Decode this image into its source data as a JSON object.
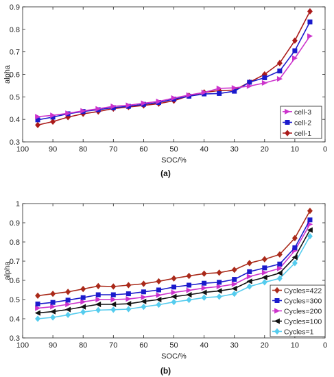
{
  "chart_data": [
    {
      "type": "line",
      "caption": "(a)",
      "xlabel": "SOC/%",
      "ylabel": "alpha",
      "xlim": [
        100,
        0
      ],
      "ylim": [
        0.3,
        0.9
      ],
      "x_reversed": true,
      "xticks": [
        100,
        90,
        80,
        70,
        60,
        50,
        40,
        30,
        20,
        10,
        0
      ],
      "yticks": [
        0.3,
        0.4,
        0.5,
        0.6,
        0.7,
        0.8,
        0.9
      ],
      "grid": false,
      "legend_position": "bottom-right",
      "x": [
        95,
        90,
        85,
        80,
        75,
        70,
        65,
        60,
        55,
        50,
        45,
        40,
        35,
        30,
        25,
        20,
        15,
        10,
        5
      ],
      "series": [
        {
          "name": "cell-3",
          "color": "#cc33cc",
          "marker": "triangle-right",
          "values": [
            0.412,
            0.418,
            0.427,
            0.438,
            0.447,
            0.458,
            0.463,
            0.472,
            0.48,
            0.495,
            0.508,
            0.52,
            0.538,
            0.54,
            0.548,
            0.562,
            0.58,
            0.672,
            0.77
          ]
        },
        {
          "name": "cell-2",
          "color": "#1a1acc",
          "marker": "square",
          "values": [
            0.398,
            0.41,
            0.425,
            0.435,
            0.443,
            0.452,
            0.458,
            0.467,
            0.475,
            0.49,
            0.503,
            0.513,
            0.515,
            0.525,
            0.565,
            0.585,
            0.615,
            0.705,
            0.833
          ]
        },
        {
          "name": "cell-1",
          "color": "#aa1a1a",
          "marker": "diamond",
          "values": [
            0.375,
            0.39,
            0.41,
            0.425,
            0.435,
            0.448,
            0.455,
            0.462,
            0.47,
            0.483,
            0.505,
            0.52,
            0.528,
            0.53,
            0.565,
            0.6,
            0.65,
            0.75,
            0.88
          ]
        }
      ]
    },
    {
      "type": "line",
      "caption": "(b)",
      "xlabel": "SOC/%",
      "ylabel": "alpha",
      "xlim": [
        100,
        0
      ],
      "ylim": [
        0.3,
        1.0
      ],
      "x_reversed": true,
      "xticks": [
        100,
        90,
        80,
        70,
        60,
        50,
        40,
        30,
        20,
        10,
        0
      ],
      "yticks": [
        0.3,
        0.4,
        0.5,
        0.6,
        0.7,
        0.8,
        0.9,
        1
      ],
      "grid": false,
      "legend_position": "bottom-right",
      "x": [
        95,
        90,
        85,
        80,
        75,
        70,
        65,
        60,
        55,
        50,
        45,
        40,
        35,
        30,
        25,
        20,
        15,
        10,
        5
      ],
      "series": [
        {
          "name": "Cycles=422",
          "color": "#aa2a1a",
          "marker": "diamond",
          "values": [
            0.52,
            0.53,
            0.54,
            0.555,
            0.57,
            0.568,
            0.575,
            0.582,
            0.595,
            0.61,
            0.623,
            0.635,
            0.64,
            0.655,
            0.69,
            0.71,
            0.735,
            0.82,
            0.962
          ]
        },
        {
          "name": "Cycles=300",
          "color": "#1a1acc",
          "marker": "square",
          "values": [
            0.477,
            0.485,
            0.497,
            0.51,
            0.525,
            0.525,
            0.53,
            0.54,
            0.55,
            0.565,
            0.575,
            0.585,
            0.59,
            0.605,
            0.645,
            0.665,
            0.685,
            0.77,
            0.915
          ]
        },
        {
          "name": "Cycles=200",
          "color": "#cc33cc",
          "marker": "triangle-right",
          "values": [
            0.455,
            0.463,
            0.475,
            0.488,
            0.5,
            0.5,
            0.503,
            0.512,
            0.523,
            0.537,
            0.548,
            0.56,
            0.568,
            0.58,
            0.62,
            0.64,
            0.662,
            0.755,
            0.892
          ]
        },
        {
          "name": "Cycles=100",
          "color": "#111111",
          "marker": "triangle-left",
          "values": [
            0.43,
            0.437,
            0.448,
            0.462,
            0.475,
            0.475,
            0.478,
            0.49,
            0.5,
            0.515,
            0.525,
            0.537,
            0.545,
            0.557,
            0.595,
            0.615,
            0.638,
            0.72,
            0.862
          ]
        },
        {
          "name": "Cycles=1",
          "color": "#55ccee",
          "marker": "diamond",
          "values": [
            0.4,
            0.407,
            0.42,
            0.435,
            0.445,
            0.447,
            0.45,
            0.462,
            0.473,
            0.487,
            0.498,
            0.51,
            0.515,
            0.53,
            0.568,
            0.59,
            0.61,
            0.69,
            0.83
          ]
        }
      ]
    }
  ]
}
